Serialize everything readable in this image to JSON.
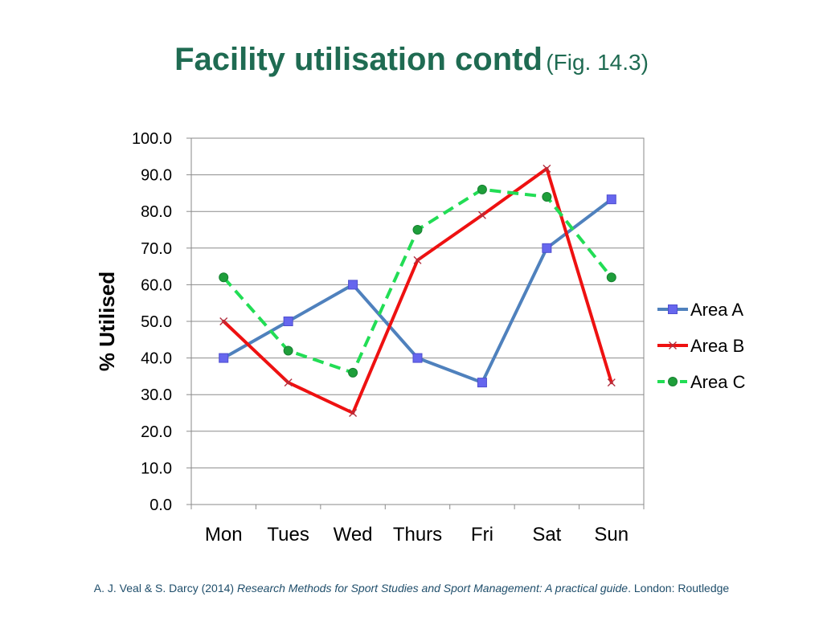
{
  "title": {
    "main": "Facility utilisation contd",
    "sub": "(Fig. 14.3)"
  },
  "citation": {
    "authors": "A. J. Veal & S. Darcy (2014) ",
    "book": "Research Methods for Sport Studies and Sport Management: A practical guide",
    "publisher": ". London: Routledge"
  },
  "chart_data": {
    "type": "line",
    "title": "",
    "xlabel": "",
    "ylabel": "% Utilised",
    "categories": [
      "Mon",
      "Tues",
      "Wed",
      "Thurs",
      "Fri",
      "Sat",
      "Sun"
    ],
    "ylim": [
      0,
      100
    ],
    "yticks": [
      "0.0",
      "10.0",
      "20.0",
      "30.0",
      "40.0",
      "50.0",
      "60.0",
      "70.0",
      "80.0",
      "90.0",
      "100.0"
    ],
    "grid": true,
    "legend_position": "right",
    "series": [
      {
        "name": "Area A",
        "values": [
          40,
          50,
          60,
          40,
          33.3,
          70,
          83.3
        ],
        "color": "#4f81bd",
        "marker": "square",
        "dash": "solid"
      },
      {
        "name": "Area B",
        "values": [
          50,
          33.3,
          25,
          66.7,
          79,
          91.7,
          33.3
        ],
        "color": "#ee1111",
        "marker": "x",
        "dash": "solid"
      },
      {
        "name": "Area C",
        "values": [
          62,
          42,
          36,
          75,
          86,
          84,
          62
        ],
        "color": "#22dd55",
        "marker": "circle",
        "dash": "dashed"
      }
    ]
  }
}
